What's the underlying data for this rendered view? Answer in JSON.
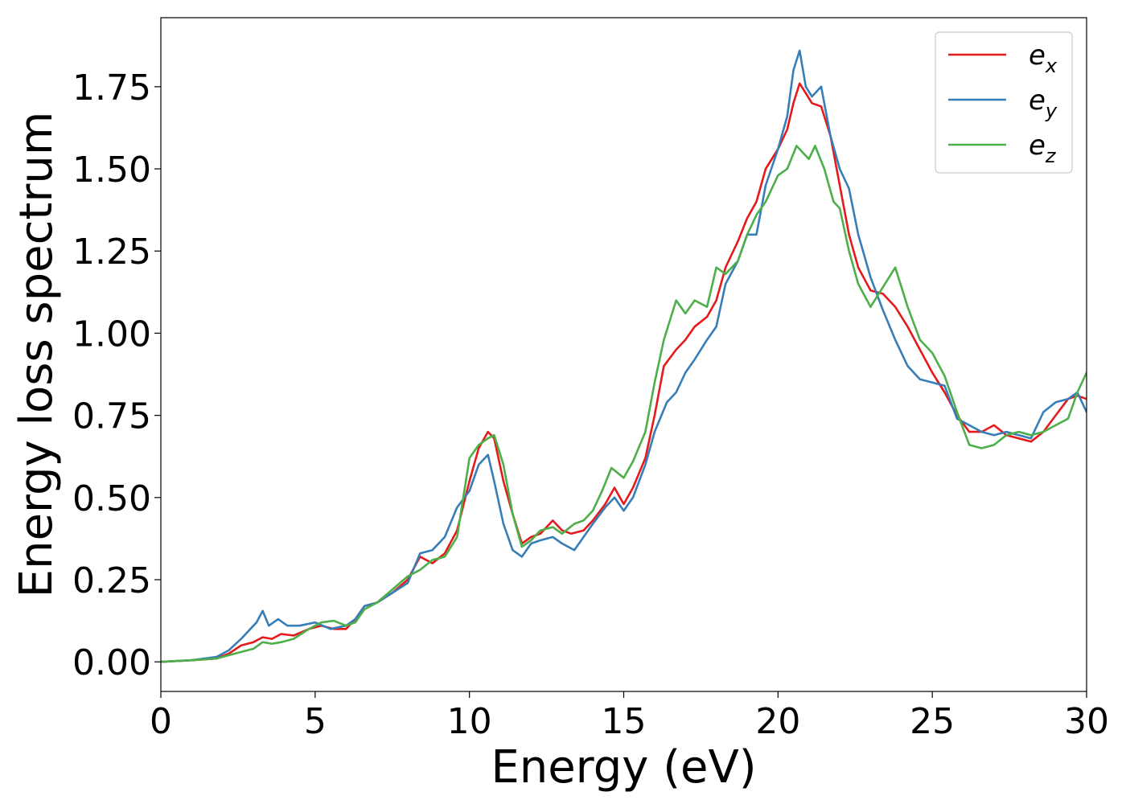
{
  "chart_data": {
    "type": "line",
    "title": "",
    "xlabel": "Energy (eV)",
    "ylabel": "Energy loss spectrum",
    "xlim": [
      0,
      30
    ],
    "ylim": [
      -0.09,
      1.96
    ],
    "xticks": [
      0,
      5,
      10,
      15,
      20,
      25,
      30
    ],
    "yticks": [
      0.0,
      0.25,
      0.5,
      0.75,
      1.0,
      1.25,
      1.5,
      1.75
    ],
    "xtick_labels": [
      "0",
      "5",
      "10",
      "15",
      "20",
      "25",
      "30"
    ],
    "ytick_labels": [
      "0.00",
      "0.25",
      "0.50",
      "0.75",
      "1.00",
      "1.25",
      "1.50",
      "1.75"
    ],
    "grid": false,
    "legend_position": "top-right",
    "series": [
      {
        "name": "e",
        "subscript": "x",
        "color": "#e41a1c",
        "x": [
          0,
          1,
          1.8,
          2.2,
          2.6,
          3.0,
          3.3,
          3.6,
          3.9,
          4.3,
          4.8,
          5.2,
          5.6,
          6.0,
          6.3,
          6.6,
          7.0,
          7.5,
          8.0,
          8.4,
          8.8,
          9.2,
          9.6,
          10.0,
          10.3,
          10.6,
          10.8,
          11.1,
          11.4,
          11.7,
          12.0,
          12.3,
          12.7,
          13.0,
          13.3,
          13.7,
          14.0,
          14.4,
          14.7,
          15.0,
          15.3,
          15.7,
          16.0,
          16.3,
          16.7,
          17.0,
          17.3,
          17.7,
          18.0,
          18.3,
          18.7,
          19.0,
          19.3,
          19.6,
          20.0,
          20.3,
          20.5,
          20.7,
          20.9,
          21.1,
          21.4,
          21.7,
          22.0,
          22.3,
          22.6,
          23.0,
          23.4,
          23.8,
          24.2,
          24.6,
          25.0,
          25.4,
          25.8,
          26.2,
          26.6,
          27.0,
          27.4,
          27.8,
          28.2,
          28.6,
          29.0,
          29.4,
          29.7,
          30.0
        ],
        "y": [
          0.0,
          0.005,
          0.01,
          0.025,
          0.05,
          0.06,
          0.075,
          0.07,
          0.085,
          0.08,
          0.1,
          0.11,
          0.1,
          0.1,
          0.13,
          0.17,
          0.18,
          0.21,
          0.25,
          0.32,
          0.3,
          0.33,
          0.4,
          0.55,
          0.65,
          0.7,
          0.68,
          0.55,
          0.45,
          0.36,
          0.38,
          0.39,
          0.43,
          0.4,
          0.39,
          0.4,
          0.43,
          0.48,
          0.53,
          0.48,
          0.53,
          0.62,
          0.75,
          0.9,
          0.95,
          0.98,
          1.02,
          1.05,
          1.1,
          1.2,
          1.28,
          1.35,
          1.4,
          1.5,
          1.56,
          1.62,
          1.7,
          1.76,
          1.73,
          1.7,
          1.69,
          1.6,
          1.45,
          1.3,
          1.2,
          1.13,
          1.12,
          1.08,
          1.02,
          0.95,
          0.88,
          0.82,
          0.75,
          0.7,
          0.7,
          0.72,
          0.69,
          0.68,
          0.67,
          0.7,
          0.75,
          0.8,
          0.81,
          0.8
        ]
      },
      {
        "name": "e",
        "subscript": "y",
        "color": "#377eb8",
        "x": [
          0,
          1,
          1.8,
          2.2,
          2.6,
          2.9,
          3.1,
          3.3,
          3.5,
          3.8,
          4.1,
          4.5,
          5.0,
          5.5,
          6.0,
          6.3,
          6.6,
          7.0,
          7.5,
          8.0,
          8.4,
          8.8,
          9.2,
          9.6,
          10.0,
          10.3,
          10.6,
          10.8,
          11.1,
          11.4,
          11.7,
          12.0,
          12.3,
          12.7,
          13.0,
          13.4,
          13.7,
          14.0,
          14.4,
          14.7,
          15.0,
          15.3,
          15.7,
          16.0,
          16.4,
          16.7,
          17.0,
          17.3,
          17.7,
          18.0,
          18.3,
          18.7,
          19.0,
          19.3,
          19.6,
          20.0,
          20.3,
          20.5,
          20.7,
          20.9,
          21.1,
          21.4,
          21.7,
          22.0,
          22.3,
          22.6,
          23.0,
          23.4,
          23.8,
          24.2,
          24.6,
          25.0,
          25.4,
          25.8,
          26.2,
          26.6,
          27.0,
          27.4,
          27.8,
          28.2,
          28.6,
          29.0,
          29.4,
          29.7,
          30.0
        ],
        "y": [
          0.0,
          0.005,
          0.015,
          0.035,
          0.07,
          0.1,
          0.12,
          0.155,
          0.11,
          0.13,
          0.11,
          0.11,
          0.12,
          0.1,
          0.11,
          0.13,
          0.17,
          0.18,
          0.21,
          0.24,
          0.33,
          0.34,
          0.38,
          0.47,
          0.52,
          0.6,
          0.63,
          0.55,
          0.42,
          0.34,
          0.32,
          0.36,
          0.37,
          0.38,
          0.36,
          0.34,
          0.38,
          0.42,
          0.47,
          0.5,
          0.46,
          0.5,
          0.6,
          0.7,
          0.79,
          0.82,
          0.88,
          0.92,
          0.98,
          1.02,
          1.15,
          1.22,
          1.3,
          1.3,
          1.45,
          1.56,
          1.66,
          1.8,
          1.86,
          1.75,
          1.72,
          1.75,
          1.6,
          1.5,
          1.44,
          1.3,
          1.17,
          1.07,
          0.98,
          0.9,
          0.86,
          0.85,
          0.84,
          0.74,
          0.72,
          0.7,
          0.69,
          0.7,
          0.69,
          0.68,
          0.76,
          0.79,
          0.8,
          0.82,
          0.76
        ]
      },
      {
        "name": "e",
        "subscript": "z",
        "color": "#4daf4a",
        "x": [
          0,
          1,
          1.8,
          2.2,
          2.6,
          3.0,
          3.3,
          3.6,
          3.9,
          4.3,
          4.8,
          5.2,
          5.6,
          6.0,
          6.3,
          6.6,
          7.0,
          7.5,
          8.0,
          8.4,
          8.8,
          9.2,
          9.6,
          10.0,
          10.3,
          10.6,
          10.8,
          11.1,
          11.4,
          11.7,
          12.0,
          12.3,
          12.7,
          13.0,
          13.4,
          13.7,
          14.0,
          14.3,
          14.6,
          15.0,
          15.3,
          15.7,
          16.0,
          16.3,
          16.7,
          17.0,
          17.3,
          17.7,
          18.0,
          18.3,
          18.7,
          19.0,
          19.3,
          19.6,
          20.0,
          20.3,
          20.6,
          20.8,
          21.0,
          21.2,
          21.5,
          21.8,
          22.0,
          22.3,
          22.6,
          23.0,
          23.4,
          23.8,
          24.2,
          24.6,
          25.0,
          25.4,
          25.8,
          26.2,
          26.6,
          27.0,
          27.4,
          27.8,
          28.2,
          28.6,
          29.0,
          29.4,
          29.7,
          30.0
        ],
        "y": [
          0.0,
          0.005,
          0.01,
          0.02,
          0.03,
          0.04,
          0.06,
          0.055,
          0.06,
          0.07,
          0.1,
          0.12,
          0.125,
          0.11,
          0.12,
          0.16,
          0.18,
          0.22,
          0.26,
          0.28,
          0.31,
          0.32,
          0.38,
          0.62,
          0.66,
          0.68,
          0.69,
          0.6,
          0.45,
          0.35,
          0.37,
          0.4,
          0.41,
          0.39,
          0.42,
          0.43,
          0.46,
          0.52,
          0.59,
          0.56,
          0.61,
          0.7,
          0.85,
          0.98,
          1.1,
          1.06,
          1.1,
          1.08,
          1.2,
          1.18,
          1.22,
          1.3,
          1.36,
          1.4,
          1.48,
          1.5,
          1.57,
          1.55,
          1.53,
          1.57,
          1.5,
          1.4,
          1.38,
          1.25,
          1.15,
          1.08,
          1.14,
          1.2,
          1.08,
          0.98,
          0.94,
          0.87,
          0.76,
          0.66,
          0.65,
          0.66,
          0.69,
          0.7,
          0.69,
          0.7,
          0.72,
          0.74,
          0.82,
          0.88
        ]
      }
    ]
  }
}
